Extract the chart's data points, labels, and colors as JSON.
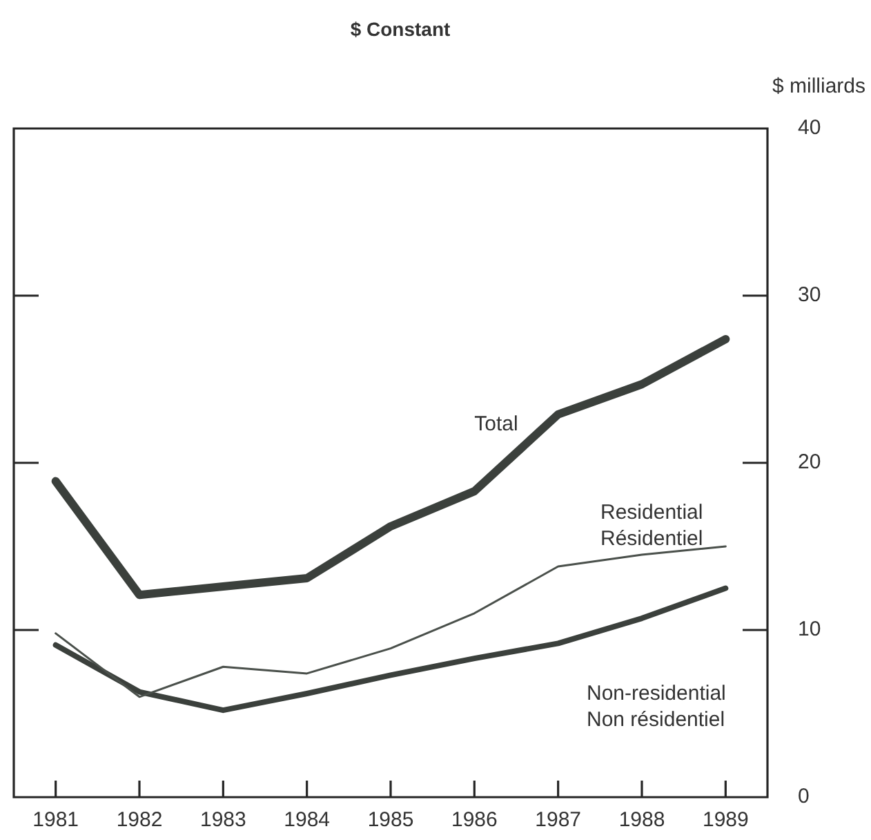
{
  "chart_data": {
    "type": "line",
    "title": "$ Constant",
    "ylabel": "$ milliards",
    "categories": [
      "1981",
      "1982",
      "1983",
      "1984",
      "1985",
      "1986",
      "1987",
      "1988",
      "1989"
    ],
    "ylim": [
      0,
      40
    ],
    "yticks": [
      0,
      10,
      20,
      30,
      40
    ],
    "grid": false,
    "legend": false,
    "marker": "none",
    "line_style": "solid",
    "tick_labels": "xy",
    "series": [
      {
        "name": "Total",
        "color": "#3b403c",
        "values": [
          18.9,
          12.1,
          12.6,
          13.1,
          16.2,
          18.3,
          22.9,
          24.7,
          27.4
        ]
      },
      {
        "name": "Residential\nRésidentiel",
        "color": "#4a504b",
        "values": [
          9.8,
          6.0,
          7.8,
          7.4,
          8.9,
          11.0,
          13.8,
          14.5,
          15.0
        ]
      },
      {
        "name": "Non-residential\nNon résidentiel",
        "color": "#3b403c",
        "values": [
          9.1,
          6.3,
          5.2,
          6.2,
          7.3,
          8.3,
          9.2,
          10.7,
          12.5
        ]
      }
    ]
  }
}
